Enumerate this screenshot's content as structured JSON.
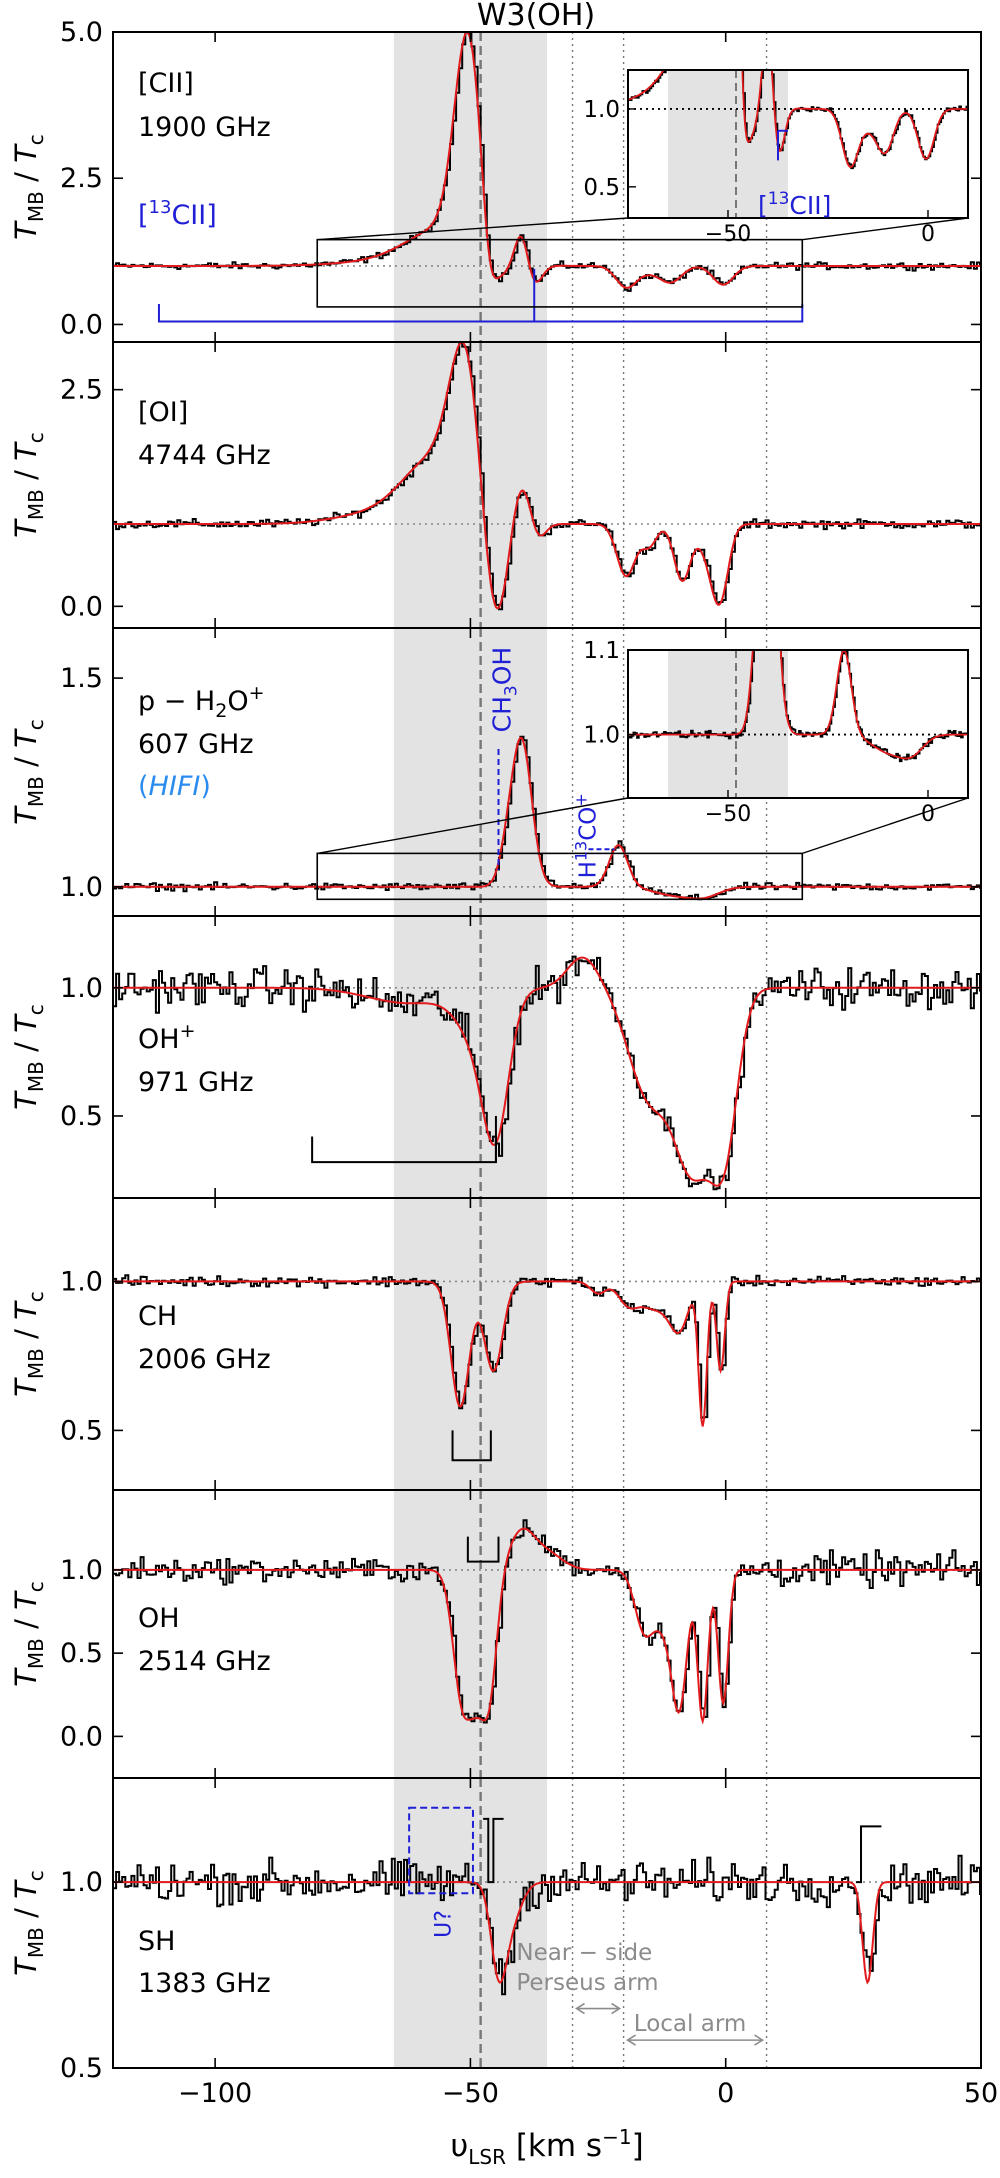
{
  "figure_title": "W3(OH)",
  "x_axis": {
    "label_main": "υ",
    "label_sub": "LSR",
    "label_units": " [km s",
    "label_exp": "−1",
    "label_end": "]",
    "range": [
      -120,
      50
    ],
    "tick_values": [
      -100,
      -50,
      0,
      50
    ],
    "tick_labels": [
      "−100",
      "−50",
      "0",
      "50"
    ]
  },
  "y_label": {
    "t": "T",
    "sub1": "MB",
    "slash": " / ",
    "t2": "T",
    "sub2": "c"
  },
  "shaded_band_kms": [
    -65,
    -35
  ],
  "dashed_line_kms": -48,
  "dotted_lines_kms": [
    -30,
    -20,
    8
  ],
  "spiral_arms": {
    "near_side_perseus": {
      "label_line1": "Near − side",
      "label_line2": "Perseus arm",
      "range_kms": [
        -30,
        -20
      ]
    },
    "local": {
      "label": "Local arm",
      "range_kms": [
        -20,
        8
      ]
    }
  },
  "chart_data": [
    {
      "type": "line",
      "panel": "CII",
      "species": "[CII]",
      "frequency": "1900 GHz",
      "ylim": [
        -0.3,
        5.0
      ],
      "yticks": [
        0.0,
        2.5,
        5.0
      ],
      "ytick_labels": [
        "0.0",
        "2.5",
        "5.0"
      ],
      "continuum": 1.0,
      "annotations": [
        "[13CII]"
      ],
      "series": [
        {
          "name": "observed",
          "color": "#000000"
        },
        {
          "name": "fit",
          "color": "#e31a1c"
        }
      ],
      "components": [
        {
          "v": -50.5,
          "amp": 3.5,
          "w": 2.6
        },
        {
          "v": -55,
          "amp": 0.6,
          "w": 7
        },
        {
          "v": -65,
          "amp": 0.08,
          "w": 10
        },
        {
          "v": -46.5,
          "amp": -0.7,
          "w": 1.3
        },
        {
          "v": -45,
          "amp": -0.45,
          "w": 2.2
        },
        {
          "v": -40,
          "amp": 0.55,
          "w": 1.3
        },
        {
          "v": -37.5,
          "amp": -0.35,
          "w": 1.5
        },
        {
          "v": -19.5,
          "amp": -0.35,
          "w": 2.0
        },
        {
          "v": -10.5,
          "amp": -0.22,
          "w": 2.0
        },
        {
          "v": -0.5,
          "amp": -0.32,
          "w": 2.0
        },
        {
          "v": -14,
          "amp": -0.12,
          "w": 3
        }
      ],
      "bracket_kms": [
        -111,
        15
      ],
      "bracket_y": 0.05,
      "bracket_top_y": 0.35,
      "bracket_tick_kms": -37.5,
      "zoom_box": {
        "x_kms": [
          -80,
          15
        ],
        "y": [
          0.3,
          1.45
        ]
      },
      "inset": {
        "x_kms": [
          -75,
          10
        ],
        "ylim": [
          0.3,
          1.25
        ],
        "yticks": [
          0.5,
          1.0
        ],
        "ytick_labels": [
          "0.5",
          "1.0"
        ],
        "xticks": [
          -50,
          0
        ],
        "xtick_labels": [
          "−50",
          "0"
        ],
        "shade_kms": [
          -65,
          -35
        ],
        "dashed_kms": -48,
        "label": "[13CII]"
      }
    },
    {
      "type": "line",
      "panel": "OI",
      "species": "[OI]",
      "frequency": "4744 GHz",
      "ylim": [
        -0.25,
        3.05
      ],
      "yticks": [
        0.0,
        2.5
      ],
      "ytick_labels": [
        "0.0",
        "2.5"
      ],
      "continuum": 0.95,
      "components": [
        {
          "v": -51,
          "amp": 1.7,
          "w": 3.0
        },
        {
          "v": -57,
          "amp": 0.7,
          "w": 6
        },
        {
          "v": -68,
          "amp": 0.12,
          "w": 8
        },
        {
          "v": -46,
          "amp": -0.95,
          "w": 2.3
        },
        {
          "v": -44,
          "amp": -0.5,
          "w": 2.0
        },
        {
          "v": -40,
          "amp": 0.5,
          "w": 2.0
        },
        {
          "v": -37,
          "amp": -0.25,
          "w": 1.5
        },
        {
          "v": -19.5,
          "amp": -0.6,
          "w": 1.8
        },
        {
          "v": -15,
          "amp": -0.25,
          "w": 1.5
        },
        {
          "v": -8.5,
          "amp": -0.65,
          "w": 1.6
        },
        {
          "v": -1,
          "amp": -0.7,
          "w": 1.6
        },
        {
          "v": -3,
          "amp": -0.35,
          "w": 2
        }
      ]
    },
    {
      "type": "line",
      "panel": "H2O+",
      "species": "p − H2O+",
      "frequency": "607 GHz",
      "instrument": "(HIFI)",
      "ylim": [
        0.93,
        1.62
      ],
      "yticks": [
        1.0,
        1.5
      ],
      "ytick_labels": [
        "1.0",
        "1.5"
      ],
      "continuum": 1.0,
      "annotations": [
        "CH3OH",
        "H13CO+"
      ],
      "components": [
        {
          "v": -40,
          "amp": 0.35,
          "w": 2.0
        },
        {
          "v": -43,
          "amp": 0.05,
          "w": 1.5
        },
        {
          "v": -21,
          "amp": 0.1,
          "w": 1.8
        },
        {
          "v": -10,
          "amp": -0.02,
          "w": 4
        },
        {
          "v": -4,
          "amp": -0.02,
          "w": 3
        }
      ],
      "zoom_box": {
        "x_kms": [
          -80,
          15
        ],
        "y": [
          0.97,
          1.08
        ]
      },
      "inset": {
        "x_kms": [
          -75,
          10
        ],
        "ylim": [
          0.925,
          1.1
        ],
        "yticks": [
          1.0,
          1.1
        ],
        "ytick_labels": [
          "1.0",
          "1.1"
        ],
        "xticks": [
          -50,
          0
        ],
        "xtick_labels": [
          "−50",
          "0"
        ],
        "shade_kms": [
          -65,
          -35
        ],
        "dashed_kms": -48
      }
    },
    {
      "type": "line",
      "panel": "OH+",
      "species": "OH+",
      "frequency": "971 GHz",
      "ylim": [
        0.18,
        1.28
      ],
      "yticks": [
        0.5,
        1.0
      ],
      "ytick_labels": [
        "0.5",
        "1.0"
      ],
      "continuum": 1.0,
      "components": [
        {
          "v": -62,
          "amp": -0.06,
          "w": 8
        },
        {
          "v": -45,
          "amp": -0.45,
          "w": 2.5
        },
        {
          "v": -48,
          "amp": -0.2,
          "w": 4
        },
        {
          "v": -28,
          "amp": 0.12,
          "w": 3
        },
        {
          "v": -15,
          "amp": -0.42,
          "w": 4
        },
        {
          "v": -5,
          "amp": -0.55,
          "w": 4
        },
        {
          "v": 0,
          "amp": -0.45,
          "w": 2.5
        },
        {
          "v": -8,
          "amp": -0.2,
          "w": 3
        }
      ],
      "bracket_kms": [
        -81,
        -45
      ],
      "bracket_y": 0.32,
      "bracket_top_y": 0.42
    },
    {
      "type": "line",
      "panel": "CH",
      "species": "CH",
      "frequency": "2006 GHz",
      "ylim": [
        0.3,
        1.28
      ],
      "yticks": [
        0.5,
        1.0
      ],
      "ytick_labels": [
        "0.5",
        "1.0"
      ],
      "continuum": 1.0,
      "components": [
        {
          "v": -52,
          "amp": -0.42,
          "w": 1.8
        },
        {
          "v": -45.5,
          "amp": -0.3,
          "w": 1.8
        },
        {
          "v": -25,
          "amp": -0.04,
          "w": 1.5
        },
        {
          "v": -19,
          "amp": -0.08,
          "w": 2.0
        },
        {
          "v": -15,
          "amp": -0.06,
          "w": 2.0
        },
        {
          "v": -9,
          "amp": -0.15,
          "w": 1.8
        },
        {
          "v": -4.5,
          "amp": -0.48,
          "w": 0.8
        },
        {
          "v": -1,
          "amp": -0.3,
          "w": 0.8
        },
        {
          "v": -12,
          "amp": -0.06,
          "w": 2
        }
      ],
      "bracket_kms": [
        -53.5,
        -46
      ],
      "bracket_y": 0.4,
      "bracket_top_y": 0.5
    },
    {
      "type": "line",
      "panel": "OH",
      "species": "OH",
      "frequency": "2514 GHz",
      "ylim": [
        -0.25,
        1.48
      ],
      "yticks": [
        0.0,
        0.5,
        1.0
      ],
      "ytick_labels": [
        "0.0",
        "0.5",
        "1.0"
      ],
      "continuum": 1.0,
      "components": [
        {
          "v": -51.5,
          "amp": -0.8,
          "w": 1.8
        },
        {
          "v": -46.5,
          "amp": -0.8,
          "w": 1.6
        },
        {
          "v": -49,
          "amp": -0.35,
          "w": 1.3
        },
        {
          "v": -40,
          "amp": 0.22,
          "w": 2.5
        },
        {
          "v": -35,
          "amp": 0.1,
          "w": 3
        },
        {
          "v": -16,
          "amp": -0.35,
          "w": 1.8
        },
        {
          "v": -9,
          "amp": -0.75,
          "w": 1.5
        },
        {
          "v": -4.5,
          "amp": -0.9,
          "w": 1.0
        },
        {
          "v": -0.5,
          "amp": -0.8,
          "w": 1.0
        },
        {
          "v": -12,
          "amp": -0.3,
          "w": 2
        }
      ],
      "bracket_kms": [
        -50.5,
        -44.5
      ],
      "bracket_y": 1.05,
      "bracket_top_y": 1.2
    },
    {
      "type": "line",
      "panel": "SH",
      "species": "SH",
      "frequency": "1383 GHz",
      "ylim": [
        0.5,
        1.28
      ],
      "yticks": [
        0.5,
        1.0
      ],
      "ytick_labels": [
        "0.5",
        "1.0"
      ],
      "continuum": 1.0,
      "annotations": [
        "U?"
      ],
      "components": [
        {
          "v": -44.5,
          "amp": -0.22,
          "w": 1.5
        },
        {
          "v": -42,
          "amp": -0.1,
          "w": 2.0
        },
        {
          "v": 27.8,
          "amp": -0.27,
          "w": 1.0
        }
      ],
      "u_box_kms": [
        -62,
        -49.5
      ],
      "u_box_y": [
        0.97,
        1.2
      ],
      "spike_groups": [
        {
          "start": -47.5,
          "step": 1.0,
          "heights": [
            1.17,
            1.0,
            1.17,
            1.17
          ]
        },
        {
          "start": 25.5,
          "step": 1.0,
          "heights": [
            1.0,
            1.15,
            1.15,
            1.15,
            1.15
          ]
        }
      ]
    }
  ]
}
